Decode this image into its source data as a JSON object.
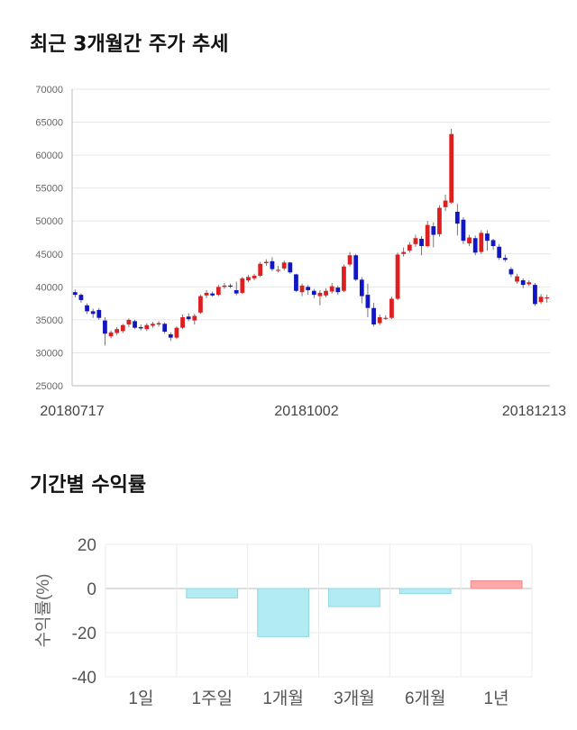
{
  "sections": {
    "stock_title": "최근 3개월간 주가 추세",
    "returns_title": "기간별 수익률"
  },
  "chart_data": [
    {
      "type": "candlestick",
      "title": "최근 3개월간 주가 추세",
      "ylim": [
        25000,
        70000
      ],
      "y_ticks": [
        25000,
        30000,
        35000,
        40000,
        45000,
        50000,
        55000,
        60000,
        65000,
        70000
      ],
      "x_tick_labels": [
        "20180717",
        "20181002",
        "20181213"
      ],
      "grid": true,
      "colors": {
        "up": "#dd1f1f",
        "down": "#1016c4",
        "wick": "#555555"
      },
      "candles": [
        [
          39200,
          38800,
          39600,
          38400
        ],
        [
          38800,
          38000,
          39000,
          37600
        ],
        [
          37200,
          36300,
          37500,
          35900
        ],
        [
          36300,
          35900,
          36700,
          35300
        ],
        [
          36500,
          35300,
          36800,
          35000
        ],
        [
          34900,
          32900,
          35400,
          31100
        ],
        [
          32500,
          33100,
          33400,
          32200
        ],
        [
          33000,
          33600,
          33900,
          32700
        ],
        [
          33300,
          34200,
          34400,
          33000
        ],
        [
          34300,
          35000,
          35200,
          33900
        ],
        [
          34800,
          33800,
          35000,
          33600
        ],
        [
          33900,
          33700,
          34300,
          33400
        ],
        [
          33600,
          34200,
          34500,
          33300
        ],
        [
          34100,
          34400,
          34700,
          33800
        ],
        [
          34300,
          34500,
          34800,
          34000
        ],
        [
          34400,
          33200,
          34600,
          32900
        ],
        [
          32800,
          32300,
          33100,
          31800
        ],
        [
          32300,
          33800,
          34000,
          32100
        ],
        [
          33800,
          35400,
          35800,
          33600
        ],
        [
          35500,
          35100,
          36000,
          34800
        ],
        [
          34900,
          35600,
          35900,
          34300
        ],
        [
          36100,
          38600,
          38800,
          35900
        ],
        [
          38700,
          39100,
          39500,
          38300
        ],
        [
          39000,
          38700,
          39300,
          38500
        ],
        [
          38800,
          40000,
          40300,
          38600
        ],
        [
          40000,
          40200,
          40600,
          39700
        ],
        [
          40200,
          40100,
          40500,
          39800
        ],
        [
          39500,
          39000,
          40800,
          38700
        ],
        [
          39100,
          41300,
          41500,
          38900
        ],
        [
          41000,
          41500,
          41800,
          40700
        ],
        [
          41300,
          41700,
          42000,
          41000
        ],
        [
          41700,
          43500,
          43800,
          41500
        ],
        [
          43600,
          43800,
          44200,
          43200
        ],
        [
          43900,
          42700,
          44500,
          42400
        ],
        [
          42600,
          42600,
          43200,
          42200
        ],
        [
          42800,
          43700,
          44000,
          42500
        ],
        [
          43700,
          42200,
          43800,
          42000
        ],
        [
          41900,
          39400,
          42000,
          39200
        ],
        [
          39200,
          40200,
          40500,
          38600
        ],
        [
          40000,
          39500,
          40300,
          38800
        ],
        [
          39400,
          38800,
          39700,
          38300
        ],
        [
          38600,
          39100,
          39500,
          37200
        ],
        [
          38700,
          39400,
          39800,
          38400
        ],
        [
          39300,
          40100,
          40600,
          39000
        ],
        [
          39900,
          39200,
          40200,
          38800
        ],
        [
          39400,
          43100,
          43400,
          39200
        ],
        [
          43400,
          44800,
          45300,
          43100
        ],
        [
          44800,
          41100,
          45000,
          40900
        ],
        [
          41100,
          38600,
          41500,
          37500
        ],
        [
          38800,
          36800,
          40500,
          35400
        ],
        [
          36800,
          34300,
          37600,
          34000
        ],
        [
          34500,
          35400,
          35800,
          34200
        ],
        [
          35300,
          35300,
          35700,
          35000
        ],
        [
          35300,
          38200,
          38500,
          35100
        ],
        [
          38200,
          44900,
          45200,
          38000
        ],
        [
          45000,
          45300,
          46000,
          44600
        ],
        [
          45500,
          46400,
          46800,
          45200
        ],
        [
          46500,
          47400,
          47900,
          46100
        ],
        [
          47300,
          46200,
          47700,
          44800
        ],
        [
          46200,
          49400,
          50000,
          46000
        ],
        [
          49200,
          47900,
          49800,
          46000
        ],
        [
          48000,
          52000,
          52400,
          47600
        ],
        [
          52100,
          53100,
          54000,
          51500
        ],
        [
          52800,
          63200,
          64000,
          52600
        ],
        [
          51400,
          49600,
          52600,
          47800
        ],
        [
          50200,
          47000,
          50600,
          46500
        ],
        [
          46600,
          47500,
          47900,
          46200
        ],
        [
          47400,
          45200,
          47800,
          44800
        ],
        [
          45300,
          48200,
          48600,
          45000
        ],
        [
          48100,
          47000,
          48600,
          45500
        ],
        [
          47100,
          46200,
          47300,
          45600
        ],
        [
          46100,
          44400,
          46500,
          44100
        ],
        [
          44400,
          44100,
          44900,
          43800
        ],
        [
          42700,
          41900,
          43000,
          41500
        ],
        [
          40800,
          41600,
          42000,
          40500
        ],
        [
          41000,
          40300,
          41300,
          39800
        ],
        [
          40400,
          40700,
          41000,
          40100
        ],
        [
          40300,
          37400,
          40600,
          37100
        ],
        [
          37700,
          38500,
          38900,
          37400
        ],
        [
          38300,
          38400,
          38800,
          37600
        ]
      ]
    },
    {
      "type": "bar",
      "title": "기간별 수익률",
      "categories": [
        "1일",
        "1주일",
        "1개월",
        "3개월",
        "6개월",
        "1년"
      ],
      "values": [
        0,
        -4.3,
        -21.8,
        -8.2,
        -2.3,
        3.5
      ],
      "ylabel": "수익률(%)",
      "ylim": [
        -40,
        20
      ],
      "y_ticks": [
        -40,
        -20,
        0,
        20
      ],
      "grid": true,
      "colors": {
        "negative": "#b3ebf2",
        "negative_border": "#8fd8e4",
        "positive": "#ffaaaa",
        "positive_border": "#f08a8a"
      }
    }
  ]
}
